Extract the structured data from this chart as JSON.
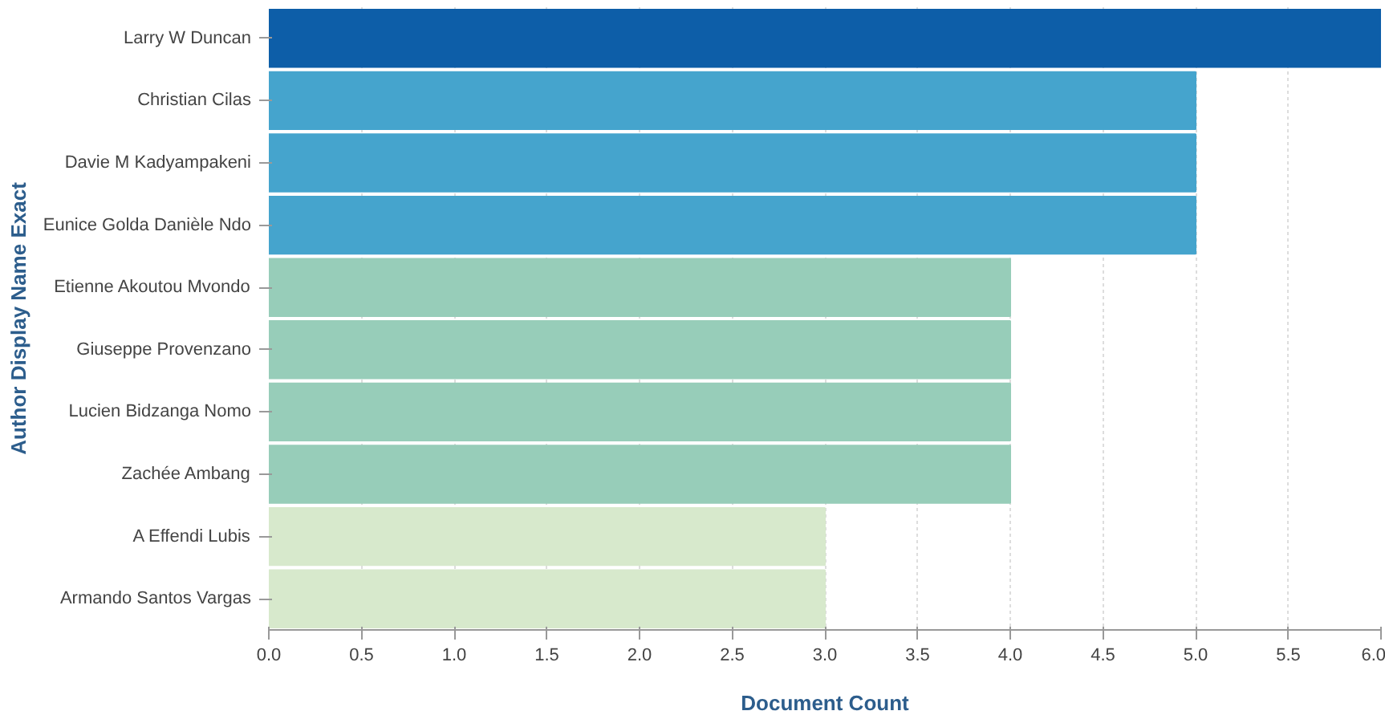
{
  "chart_data": {
    "type": "bar",
    "orientation": "horizontal",
    "xlabel": "Document Count",
    "ylabel": "Author Display Name Exact",
    "categories": [
      "Larry W Duncan",
      "Christian Cilas",
      "Davie M Kadyampakeni",
      "Eunice Golda Danièle Ndo",
      "Etienne Akoutou Mvondo",
      "Giuseppe Provenzano",
      "Lucien Bidzanga Nomo",
      "Zachée Ambang",
      "A Effendi Lubis",
      "Armando Santos Vargas"
    ],
    "values": [
      6,
      5,
      5,
      5,
      4,
      4,
      4,
      4,
      3,
      3
    ],
    "colors": [
      "#0d5ea8",
      "#45a4cd",
      "#45a4cd",
      "#45a4cd",
      "#97cdb9",
      "#97cdb9",
      "#97cdb9",
      "#97cdb9",
      "#d7e9cc",
      "#d7e9cc"
    ],
    "xlim": [
      0,
      6
    ],
    "xticks": [
      {
        "value": 0,
        "label": "0.0"
      },
      {
        "value": 0.5,
        "label": "0.5"
      },
      {
        "value": 1,
        "label": "1.0"
      },
      {
        "value": 1.5,
        "label": "1.5"
      },
      {
        "value": 2,
        "label": "2.0"
      },
      {
        "value": 2.5,
        "label": "2.5"
      },
      {
        "value": 3,
        "label": "3.0"
      },
      {
        "value": 3.5,
        "label": "3.5"
      },
      {
        "value": 4,
        "label": "4.0"
      },
      {
        "value": 4.5,
        "label": "4.5"
      },
      {
        "value": 5,
        "label": "5.0"
      },
      {
        "value": 5.5,
        "label": "5.5"
      },
      {
        "value": 6,
        "label": "6.0"
      }
    ],
    "grid": "x"
  }
}
